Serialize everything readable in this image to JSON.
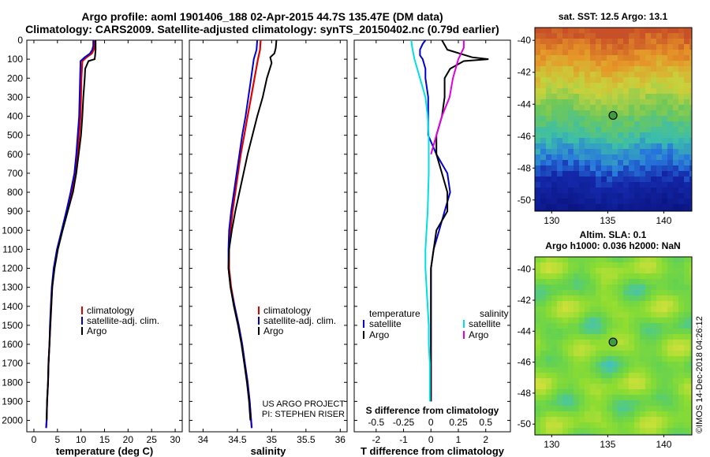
{
  "header": {
    "title_line1": "Argo profile: aoml 1901406_188 02-Apr-2015 44.7S 135.47E (DM data)",
    "title_line2": "Climatology: CARS2009. Satellite-adjusted climatology: synTS_20150402.nc (0.79d earlier)"
  },
  "maps": {
    "sst_title": "sat. SST: 12.5 Argo: 13.1",
    "sla_title_line1": "Altim. SLA: 0.1",
    "sla_title_line2": "Argo h1000: 0.036 h2000: NaN",
    "lat_ticks": [
      "-40",
      "-42",
      "-44",
      "-46",
      "-48",
      "-50"
    ],
    "lon_ticks": [
      "130",
      "135",
      "140"
    ],
    "lon_values": [
      130,
      135,
      140
    ],
    "lat_values": [
      -40,
      -42,
      -44,
      -46,
      -48,
      -50
    ],
    "argo_position": {
      "lon": 135.47,
      "lat": -44.7
    },
    "lon_range": [
      128.5,
      142.5
    ],
    "lat_range": [
      -50.7,
      -39.2
    ]
  },
  "watermark": "©IMOS 14-Dec-2018 04:26:12",
  "colors": {
    "climatology": "#e00000",
    "satellite": "#0000d0",
    "argo": "#000000",
    "salinity_satellite": "#00e0e0",
    "salinity_argo": "#e000e0"
  },
  "chart_data": [
    {
      "type": "line",
      "xlabel": "temperature (deg C)",
      "ylabel": "",
      "xlim": [
        -1.5,
        31.5
      ],
      "ylim": [
        2060,
        0
      ],
      "x_ticks": [
        0,
        5,
        10,
        15,
        20,
        25,
        30
      ],
      "y_ticks": [
        0,
        100,
        200,
        300,
        400,
        500,
        600,
        700,
        800,
        900,
        1000,
        1100,
        1200,
        1300,
        1400,
        1500,
        1600,
        1700,
        1800,
        1900,
        2000
      ],
      "legend": [
        "climatology",
        "satellite-adj. clim.",
        "Argo"
      ],
      "series": [
        {
          "name": "climatology",
          "points": [
            [
              12.9,
              0
            ],
            [
              12.9,
              30
            ],
            [
              12.7,
              50
            ],
            [
              12.3,
              70
            ],
            [
              11.2,
              90
            ],
            [
              10.3,
              110
            ],
            [
              10.1,
              200
            ],
            [
              10.0,
              300
            ],
            [
              9.9,
              400
            ],
            [
              9.6,
              500
            ],
            [
              9.3,
              600
            ],
            [
              8.8,
              700
            ],
            [
              8.0,
              800
            ],
            [
              7.0,
              900
            ],
            [
              6.0,
              1000
            ],
            [
              5.0,
              1100
            ],
            [
              4.3,
              1200
            ],
            [
              3.9,
              1300
            ],
            [
              3.7,
              1400
            ],
            [
              3.5,
              1500
            ],
            [
              3.3,
              1600
            ],
            [
              3.1,
              1700
            ],
            [
              3.0,
              1800
            ],
            [
              2.8,
              1900
            ],
            [
              2.7,
              2000
            ],
            [
              2.6,
              2040
            ]
          ]
        },
        {
          "name": "satellite-adj. clim.",
          "points": [
            [
              12.6,
              0
            ],
            [
              12.6,
              30
            ],
            [
              12.4,
              50
            ],
            [
              11.9,
              70
            ],
            [
              10.8,
              90
            ],
            [
              9.9,
              110
            ],
            [
              9.8,
              200
            ],
            [
              9.7,
              300
            ],
            [
              9.6,
              400
            ],
            [
              9.3,
              500
            ],
            [
              9.0,
              600
            ],
            [
              8.6,
              700
            ],
            [
              7.8,
              800
            ],
            [
              6.9,
              900
            ],
            [
              5.9,
              1000
            ],
            [
              4.9,
              1100
            ],
            [
              4.2,
              1200
            ],
            [
              3.8,
              1300
            ],
            [
              3.6,
              1400
            ],
            [
              3.4,
              1500
            ],
            [
              3.3,
              1600
            ],
            [
              3.1,
              1700
            ],
            [
              3.0,
              1800
            ],
            [
              2.8,
              1900
            ],
            [
              2.7,
              2000
            ],
            [
              2.6,
              2040
            ]
          ]
        },
        {
          "name": "Argo",
          "points": [
            [
              13.1,
              0
            ],
            [
              13.1,
              50
            ],
            [
              13.0,
              80
            ],
            [
              12.9,
              100
            ],
            [
              11.6,
              110
            ],
            [
              10.9,
              150
            ],
            [
              10.8,
              200
            ],
            [
              10.5,
              300
            ],
            [
              10.3,
              400
            ],
            [
              10.0,
              500
            ],
            [
              9.5,
              600
            ],
            [
              9.0,
              700
            ],
            [
              8.3,
              800
            ],
            [
              7.2,
              900
            ],
            [
              6.1,
              1000
            ],
            [
              5.1,
              1100
            ],
            [
              4.4,
              1200
            ],
            [
              3.9,
              1300
            ],
            [
              3.7,
              1400
            ],
            [
              3.5,
              1500
            ],
            [
              3.3,
              1600
            ],
            [
              3.1,
              1700
            ],
            [
              3.0,
              1800
            ],
            [
              2.8,
              1900
            ],
            [
              2.7,
              2000
            ]
          ]
        }
      ]
    },
    {
      "type": "line",
      "xlabel": "salinity",
      "ylabel": "",
      "xlim": [
        33.8,
        36.1
      ],
      "ylim": [
        2060,
        0
      ],
      "x_ticks": [
        34,
        34.5,
        35,
        35.5,
        36
      ],
      "legend": [
        "climatology",
        "satellite-adj. clim.",
        "Argo"
      ],
      "annotation_line1": "US ARGO PROJECT",
      "annotation_line2": "PI: STEPHEN RISER",
      "series": [
        {
          "name": "climatology",
          "points": [
            [
              34.84,
              0
            ],
            [
              34.83,
              50
            ],
            [
              34.8,
              100
            ],
            [
              34.75,
              200
            ],
            [
              34.7,
              300
            ],
            [
              34.65,
              400
            ],
            [
              34.6,
              500
            ],
            [
              34.55,
              600
            ],
            [
              34.51,
              700
            ],
            [
              34.47,
              800
            ],
            [
              34.43,
              900
            ],
            [
              34.4,
              1000
            ],
            [
              34.38,
              1100
            ],
            [
              34.38,
              1200
            ],
            [
              34.41,
              1300
            ],
            [
              34.46,
              1400
            ],
            [
              34.52,
              1500
            ],
            [
              34.57,
              1600
            ],
            [
              34.61,
              1700
            ],
            [
              34.65,
              1800
            ],
            [
              34.68,
              1900
            ],
            [
              34.7,
              2000
            ],
            [
              34.71,
              2040
            ]
          ]
        },
        {
          "name": "satellite-adj. clim.",
          "points": [
            [
              34.79,
              0
            ],
            [
              34.78,
              50
            ],
            [
              34.74,
              100
            ],
            [
              34.7,
              200
            ],
            [
              34.66,
              300
            ],
            [
              34.62,
              400
            ],
            [
              34.57,
              500
            ],
            [
              34.53,
              600
            ],
            [
              34.49,
              700
            ],
            [
              34.45,
              800
            ],
            [
              34.41,
              900
            ],
            [
              34.38,
              1000
            ],
            [
              34.37,
              1100
            ],
            [
              34.37,
              1200
            ],
            [
              34.4,
              1300
            ],
            [
              34.46,
              1400
            ],
            [
              34.52,
              1500
            ],
            [
              34.57,
              1600
            ],
            [
              34.61,
              1700
            ],
            [
              34.65,
              1800
            ],
            [
              34.68,
              1900
            ],
            [
              34.7,
              2000
            ],
            [
              34.71,
              2040
            ]
          ]
        },
        {
          "name": "Argo",
          "points": [
            [
              35.07,
              0
            ],
            [
              35.06,
              40
            ],
            [
              35.04,
              70
            ],
            [
              34.98,
              90
            ],
            [
              35.0,
              120
            ],
            [
              34.93,
              200
            ],
            [
              34.87,
              300
            ],
            [
              34.79,
              400
            ],
            [
              34.72,
              500
            ],
            [
              34.65,
              600
            ],
            [
              34.59,
              700
            ],
            [
              34.53,
              800
            ],
            [
              34.47,
              900
            ],
            [
              34.42,
              1000
            ],
            [
              34.38,
              1100
            ],
            [
              34.37,
              1200
            ],
            [
              34.4,
              1300
            ],
            [
              34.45,
              1400
            ],
            [
              34.51,
              1500
            ],
            [
              34.56,
              1600
            ],
            [
              34.6,
              1700
            ],
            [
              34.64,
              1800
            ],
            [
              34.67,
              1900
            ],
            [
              34.69,
              2000
            ]
          ]
        }
      ]
    },
    {
      "type": "line",
      "xlabel": "T difference from climatology",
      "ylabel": "",
      "xlim": [
        -2.8,
        2.9
      ],
      "ylim": [
        2060,
        0
      ],
      "x_ticks": [
        -2,
        -1,
        0,
        1,
        2
      ],
      "top_xlabel": "S difference from climatology",
      "top_x_ticks": [
        "-0.5",
        "-0.25",
        "0",
        "0.25",
        "0.5"
      ],
      "legend_title_left": "temperature",
      "legend_title_right": "salinity",
      "legend_left": [
        "satellite",
        "Argo"
      ],
      "legend_right": [
        "satellite",
        "Argo"
      ],
      "series": [
        {
          "name": "satellite",
          "group": "temperature",
          "points": [
            [
              -0.2,
              0
            ],
            [
              -0.3,
              20
            ],
            [
              -0.4,
              50
            ],
            [
              -0.4,
              80
            ],
            [
              -0.3,
              100
            ],
            [
              -0.2,
              150
            ],
            [
              -0.2,
              200
            ],
            [
              -0.1,
              300
            ],
            [
              -0.1,
              400
            ],
            [
              -0.1,
              500
            ],
            [
              0.2,
              600
            ],
            [
              0.6,
              700
            ],
            [
              0.7,
              800
            ],
            [
              0.5,
              900
            ],
            [
              0.3,
              1000
            ],
            [
              0.1,
              1100
            ],
            [
              0.0,
              1200
            ],
            [
              0.0,
              1300
            ],
            [
              0.0,
              1400
            ],
            [
              0.0,
              1500
            ],
            [
              0.0,
              1600
            ],
            [
              0.0,
              1700
            ],
            [
              0.0,
              1800
            ],
            [
              0.0,
              1900
            ]
          ]
        },
        {
          "name": "Argo",
          "group": "temperature",
          "points": [
            [
              0.4,
              0
            ],
            [
              0.6,
              50
            ],
            [
              1.5,
              90
            ],
            [
              2.1,
              100
            ],
            [
              1.2,
              110
            ],
            [
              0.7,
              150
            ],
            [
              0.5,
              200
            ],
            [
              0.5,
              300
            ],
            [
              0.4,
              400
            ],
            [
              0.2,
              500
            ],
            [
              0.2,
              600
            ],
            [
              0.4,
              700
            ],
            [
              0.6,
              800
            ],
            [
              0.6,
              900
            ],
            [
              0.2,
              1000
            ],
            [
              0.1,
              1100
            ],
            [
              0.0,
              1200
            ],
            [
              0.0,
              1300
            ],
            [
              0.0,
              1400
            ],
            [
              0.0,
              1500
            ],
            [
              0.0,
              1600
            ],
            [
              0.0,
              1700
            ],
            [
              0.0,
              1800
            ],
            [
              0.0,
              1900
            ]
          ]
        },
        {
          "name": "satellite",
          "group": "salinity",
          "points": [
            [
              -0.18,
              0
            ],
            [
              -0.17,
              40
            ],
            [
              -0.15,
              100
            ],
            [
              -0.1,
              200
            ],
            [
              -0.05,
              300
            ],
            [
              -0.03,
              400
            ],
            [
              -0.02,
              500
            ],
            [
              -0.02,
              700
            ],
            [
              -0.03,
              900
            ],
            [
              -0.04,
              1000
            ],
            [
              -0.05,
              1100
            ],
            [
              -0.05,
              1200
            ],
            [
              -0.04,
              1300
            ],
            [
              -0.03,
              1400
            ],
            [
              -0.02,
              1500
            ],
            [
              -0.02,
              1600
            ],
            [
              -0.01,
              1700
            ],
            [
              -0.01,
              1800
            ],
            [
              -0.01,
              1900
            ]
          ]
        },
        {
          "name": "Argo",
          "group": "salinity",
          "points": [
            [
              0.3,
              0
            ],
            [
              0.3,
              40
            ],
            [
              0.25,
              100
            ],
            [
              0.2,
              200
            ],
            [
              0.17,
              300
            ],
            [
              0.1,
              400
            ],
            [
              0.05,
              500
            ],
            [
              0.0,
              600
            ]
          ]
        }
      ]
    }
  ]
}
